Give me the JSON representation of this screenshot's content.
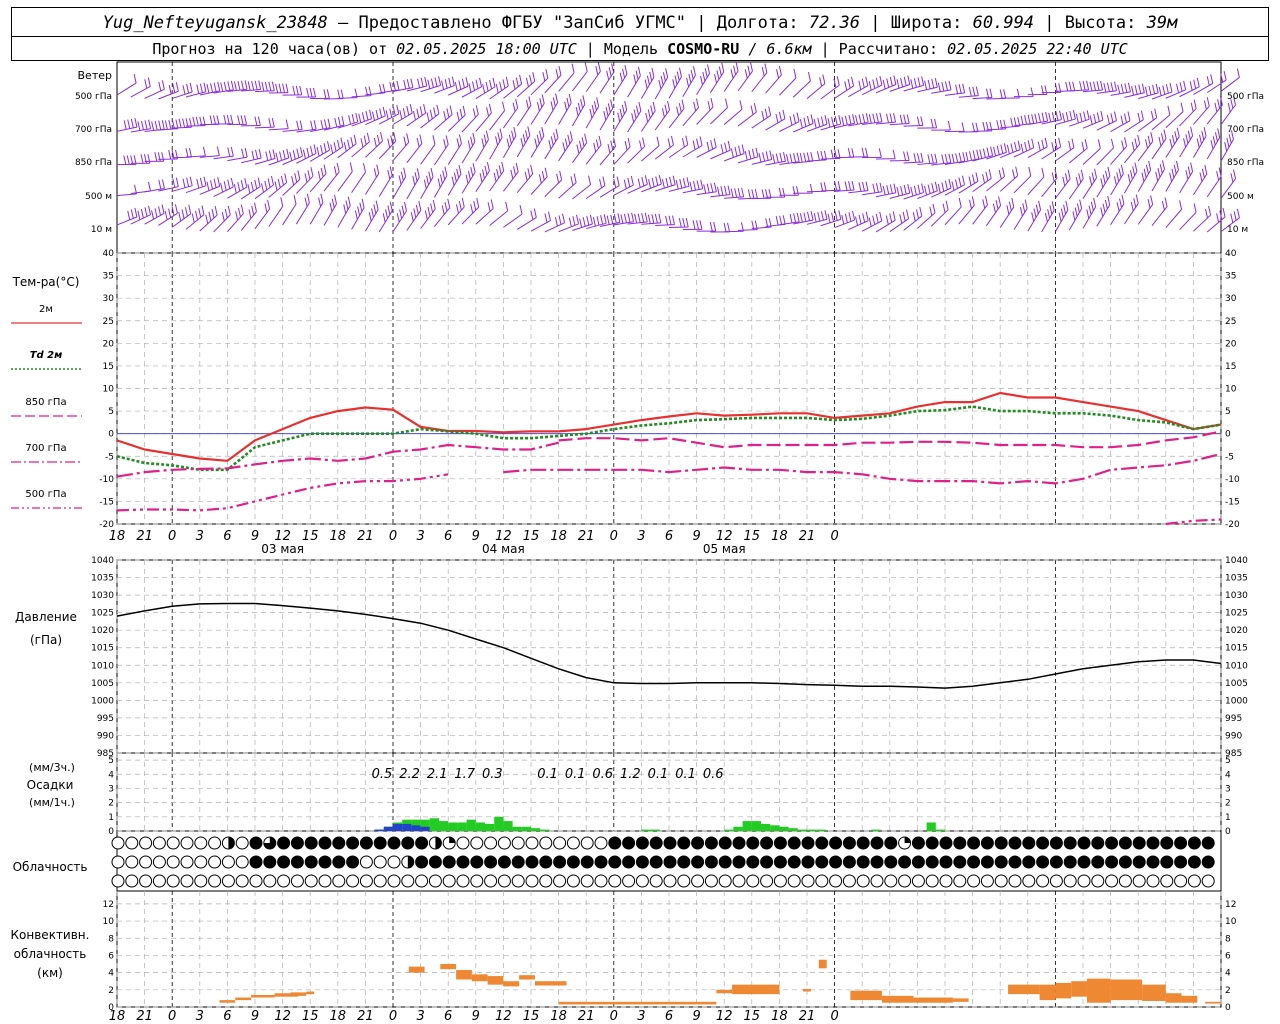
{
  "header": {
    "station": "Yug_Nefteyugansk_23848",
    "provider": " – Предоставлено ФГБУ \"ЗапСиб УГМС\" | Долгота: ",
    "lon": "72.36",
    "lat_label": " | Широта: ",
    "lat": "60.994",
    "alt_label": " | Высота: ",
    "alt": "39м",
    "forecast_label": "Прогноз на 120 часа(ов) от ",
    "forecast_from": "02.05.2025 18:00 UTC",
    "model_label": " | Модель ",
    "model": "COSMO-RU",
    "model_res": " / 6.6км",
    "calc_label": " | Рассчитано: ",
    "calc_time": "02.05.2025 22:40 UTC"
  },
  "time_axis": {
    "hour_labels": [
      "18",
      "21",
      "0",
      "3",
      "6",
      "9",
      "12",
      "15",
      "18",
      "21",
      "0",
      "3",
      "6",
      "9",
      "12",
      "15",
      "18",
      "21",
      "0",
      "3",
      "6",
      "9",
      "12",
      "15",
      "18",
      "21",
      "0"
    ],
    "day_labels": [
      {
        "text": "03 мая",
        "index": 6
      },
      {
        "text": "04 мая",
        "index": 14
      },
      {
        "text": "05 мая",
        "index": 22
      }
    ]
  },
  "wind_panel": {
    "title": "Ветер",
    "levels": [
      "500 гПа",
      "700 гПа",
      "850 гПа",
      "500 м",
      "10 м"
    ],
    "color": "#8a2be2"
  },
  "temp_panel": {
    "title": "Тем-ра(°С)",
    "yticks": [
      40,
      35,
      30,
      25,
      20,
      15,
      10,
      5,
      0,
      -5,
      -10,
      -15,
      -20
    ],
    "legend": [
      {
        "label": "2м",
        "color": "#e83030",
        "dash": "solid"
      },
      {
        "label": "Td 2м",
        "color": "#228b22",
        "dash": "dotted"
      },
      {
        "label": "850 гПа",
        "color": "#e0208a",
        "dash": "dash"
      },
      {
        "label": "700 гПа",
        "color": "#e0208a",
        "dash": "dashdot"
      },
      {
        "label": "500 гПа",
        "color": "#e0208a",
        "dash": "dashdotdot"
      }
    ]
  },
  "pressure_panel": {
    "title": "Давление",
    "unit": "(гПа)",
    "yticks": [
      1040,
      1035,
      1030,
      1025,
      1020,
      1015,
      1010,
      1005,
      1000,
      995,
      990,
      985
    ]
  },
  "precip_panel": {
    "title_top": "(мм/3ч.)",
    "title": "Осадки",
    "title_bottom": "(мм/1ч.)",
    "yticks": [
      5,
      4,
      3,
      2,
      1,
      0
    ],
    "totals": [
      {
        "value": "0.5",
        "index": 9.6
      },
      {
        "value": "2.2",
        "index": 10.6
      },
      {
        "value": "2.1",
        "index": 11.6
      },
      {
        "value": "1.7",
        "index": 12.6
      },
      {
        "value": "0.3",
        "index": 13.6
      },
      {
        "value": "0.1",
        "index": 15.6
      },
      {
        "value": "0.1",
        "index": 16.6
      },
      {
        "value": "0.6",
        "index": 17.6
      },
      {
        "value": "1.2",
        "index": 18.6
      },
      {
        "value": "0.1",
        "index": 19.6
      },
      {
        "value": "0.1",
        "index": 20.6
      },
      {
        "value": "0.6",
        "index": 21.6
      }
    ]
  },
  "cloud_panel": {
    "title": "Облачность",
    "rows": [
      "OOOOOOOOOOOOOOOOOOOOOHOOQTFFTFFFFFFFFFHFFFFFFFFFFFFFFFFFFFFFHHHQOOOOOOOOOOOOOOOOOOOOOOOOOOOOOOFFHFFFFTFFFFFFFFFFFFFFFFFFFFFFFFFFFFFFFFFFFFFFFFFFFFFFQQFFFFFFFFFFFFFFFFFFFFFFFFFFFFFFFFFFFFFFFFFFFFFFFFFFFFFFFFFFFF",
      "OOOOOOOOOOOOOOOOOOOOOOOOOFFFFFFFFFFFFFFFFFFFFHHOOOOOOOOHHFFFFFFFFFFFFFFFFFFFFFFFFFFFFFFFFFFFFFFFFFFFFFFFFFFFFFFFFFFFFFFFFFFFFFFFFFFFFFFFFFFFFFFFFFFFFFFFFFFFFFFFFFFFFFFFFFFFFFFFFFFFFFFFFFFFFFFFFFFFFFFFFFFFFFFFFFF",
      "OOOOOOOOOOOOOOOOOOOOOOOOOOOOOOOOOOOOOOOOOOOOOOOOOOOOOOOOOOOOOOOOOOOOOOOOOOOOOOOOOOOOOOOOOOOOOOOOOOOOOOOOOOOOOOOOOOOOOOOOOOOOOOOOOOOOOOOOOOOOOOOOOOOOOOOOOOOOOOOOOOOOOOOOOOOOOOOOOOOOOOOOOOOOOOOOOOOOOOOOO"
    ]
  },
  "conv_panel": {
    "title_lines": [
      "Конвективн.",
      "облачность",
      "(км)"
    ],
    "yticks": [
      12,
      10,
      8,
      6,
      4,
      2,
      0
    ]
  },
  "colors": {
    "wind": "#8a2be2",
    "t2m": "#e83030",
    "td2m": "#228b22",
    "upper": "#e0208a",
    "pressure": "#000000",
    "precip_green": "#22cc22",
    "precip_blue": "#2244cc",
    "convective": "#ee8833",
    "grid": "#b0b0b0"
  },
  "chart_data": [
    {
      "type": "line",
      "panel": "temperature",
      "title": "Тем-ра(°С)",
      "x_hours": [
        0,
        3,
        6,
        9,
        12,
        15,
        18,
        21,
        24,
        27,
        30,
        33,
        36,
        39,
        42,
        45,
        48,
        51,
        54,
        57,
        60,
        63,
        66,
        69,
        72,
        75,
        78,
        81,
        84,
        87,
        90,
        93,
        96,
        99,
        102,
        105,
        108,
        111,
        114,
        117,
        120
      ],
      "ylim": [
        -20,
        40
      ],
      "series": [
        {
          "name": "2м",
          "values": [
            -1.5,
            -3.5,
            -4.5,
            -5.5,
            -6,
            -1.5,
            1,
            3.5,
            5,
            5.8,
            5.3,
            1.5,
            0.6,
            0.6,
            0.3,
            0.5,
            0.5,
            1,
            2,
            3,
            3.8,
            4.5,
            4,
            4.2,
            4.5,
            4.5,
            3.5,
            4,
            4.5,
            6,
            7,
            7,
            9,
            8,
            8,
            7,
            6,
            5,
            3,
            1,
            2
          ]
        },
        {
          "name": "Td 2м",
          "values": [
            -5,
            -6.5,
            -7,
            -8,
            -8,
            -3,
            -1.5,
            0,
            0,
            0,
            0,
            1,
            0.5,
            0,
            -1,
            -1,
            -0.5,
            0,
            1,
            1.8,
            2.3,
            3,
            3.2,
            3.5,
            3.5,
            3.5,
            3,
            3.3,
            4,
            5,
            5.2,
            6,
            5,
            5,
            4.5,
            4.5,
            4,
            3,
            2.5,
            1,
            2
          ]
        },
        {
          "name": "850 гПа",
          "values": [
            null,
            null,
            null,
            null,
            null,
            null,
            null,
            null,
            null,
            null,
            null,
            null,
            null,
            null,
            null,
            null,
            -1.5,
            -1,
            -1,
            -1.5,
            -1,
            -2,
            -3,
            -2.5,
            -2.5,
            -2.5,
            -2.5,
            -2,
            -2,
            -1.8,
            -1.8,
            -2,
            -2.5,
            -2.5,
            -2.5,
            -3,
            -3,
            -2.5,
            -1.5,
            -0.8,
            0.5
          ]
        },
        {
          "name": "700 гПа",
          "values": [
            -9.5,
            -8.5,
            -8,
            -7.8,
            -7.7,
            -6.8,
            -6,
            -5.5,
            -6,
            -5.5,
            -4,
            -3.5,
            -2.5,
            -3,
            -3.5,
            -3.5,
            -2,
            null,
            null,
            null,
            null,
            null,
            null,
            null,
            null,
            null,
            null,
            null,
            null,
            null,
            null,
            null,
            null,
            null,
            null,
            null,
            null,
            null,
            null,
            null,
            null
          ]
        },
        {
          "name": "_700b",
          "values": [
            null,
            null,
            null,
            null,
            null,
            null,
            null,
            null,
            null,
            null,
            null,
            null,
            null,
            null,
            -8.5,
            -8,
            -8,
            -8,
            -8,
            -8,
            -8.5,
            -8,
            -7.5,
            -8,
            -8,
            -8.5,
            -8.5,
            -9,
            -10,
            -10.5,
            -10.5,
            -10.5,
            -11,
            -10.5,
            -11,
            -10,
            -8,
            -7.5,
            -7,
            -6,
            -4.5
          ]
        },
        {
          "name": "500 гПа",
          "values": [
            -17,
            -16.8,
            -16.8,
            -17,
            -16.5,
            -15,
            -13.5,
            -12,
            -11,
            -10.5,
            -10.5,
            -10,
            -9,
            null,
            null,
            null,
            null,
            null,
            null,
            null,
            null,
            null,
            null,
            null,
            null,
            null,
            null,
            null,
            null,
            null,
            null,
            null,
            null,
            null,
            null,
            null,
            null,
            null,
            -20,
            -19.3,
            -19
          ]
        }
      ]
    },
    {
      "type": "line",
      "panel": "pressure",
      "title": "Давление",
      "x_hours": [
        0,
        3,
        6,
        9,
        12,
        15,
        18,
        21,
        24,
        27,
        30,
        33,
        36,
        39,
        42,
        45,
        48,
        51,
        54,
        57,
        60,
        63,
        66,
        69,
        72,
        75,
        78,
        81,
        84,
        87,
        90,
        93,
        96,
        99,
        102,
        105,
        108,
        111,
        114,
        117,
        120
      ],
      "ylim": [
        985,
        1040
      ],
      "series": [
        {
          "name": "Давление",
          "values": [
            1024,
            1025.5,
            1026.8,
            1027.5,
            1027.6,
            1027.6,
            1027,
            1026.3,
            1025.5,
            1024.5,
            1023.3,
            1022,
            1020,
            1017.5,
            1015,
            1012,
            1009,
            1006.5,
            1005,
            1004.8,
            1004.8,
            1005,
            1005,
            1005,
            1004.8,
            1004.5,
            1004.3,
            1004,
            1004,
            1003.8,
            1003.5,
            1004,
            1005,
            1006,
            1007.5,
            1009,
            1010,
            1011,
            1011.5,
            1011.5,
            1010.5
          ]
        }
      ]
    },
    {
      "type": "bar",
      "panel": "precipitation",
      "title": "Осадки",
      "x_hours": [
        28,
        29,
        30,
        31,
        32,
        33,
        34,
        35,
        36,
        37,
        38,
        39,
        40,
        41,
        42,
        43,
        44,
        45,
        46,
        47,
        48,
        49,
        50,
        51,
        52,
        53,
        54,
        55,
        56,
        57,
        58,
        59,
        60,
        61,
        62,
        63,
        64,
        65,
        66,
        67,
        68,
        69,
        70,
        71,
        72,
        73,
        74,
        75,
        76,
        77,
        78,
        79,
        80,
        81,
        82,
        83,
        84,
        85,
        86,
        87,
        88,
        89,
        90,
        91,
        92,
        93,
        94,
        95,
        96,
        97,
        98,
        99,
        100
      ],
      "ylim": [
        0,
        5
      ],
      "series": [
        {
          "name": "rain",
          "values": [
            0.1,
            0.3,
            0.6,
            0.8,
            0.8,
            0.8,
            0.9,
            0.7,
            0.6,
            0.6,
            0.8,
            0.6,
            0.5,
            1,
            0.7,
            0.3,
            0.3,
            0.2,
            0.1,
            0,
            0,
            0,
            0,
            0,
            0,
            0,
            0,
            0,
            0,
            0.1,
            0.1,
            0,
            0,
            0,
            0,
            0,
            0,
            0,
            0.1,
            0.3,
            0.7,
            0.7,
            0.5,
            0.4,
            0.3,
            0.2,
            0.1,
            0.1,
            0.1,
            0,
            0,
            0,
            0,
            0,
            0.1,
            0,
            0,
            0,
            0,
            0,
            0.6,
            0.1,
            0,
            0,
            0,
            0,
            0,
            0,
            0,
            0,
            0,
            0,
            0
          ]
        },
        {
          "name": "snow",
          "values": [
            0.1,
            0.3,
            0.5,
            0.5,
            0.4,
            0.3,
            0,
            0,
            0,
            0,
            0,
            0,
            0,
            0,
            0,
            0,
            0,
            0,
            0,
            0,
            0,
            0,
            0,
            0,
            0,
            0,
            0,
            0,
            0,
            0,
            0,
            0,
            0,
            0,
            0,
            0,
            0,
            0,
            0,
            0,
            0,
            0,
            0,
            0,
            0,
            0,
            0,
            0,
            0,
            0,
            0,
            0,
            0,
            0,
            0,
            0,
            0,
            0,
            0,
            0,
            0,
            0,
            0,
            0,
            0,
            0,
            0,
            0,
            0,
            0,
            0,
            0,
            0
          ]
        }
      ]
    },
    {
      "type": "bar",
      "panel": "convective_cloud",
      "title": "Конвективн. облачность (км)",
      "ylim": [
        0,
        13
      ],
      "bars": [
        {
          "h0": 13,
          "h1": 15,
          "bottom": 0.5,
          "top": 0.8
        },
        {
          "h0": 15,
          "h1": 17,
          "bottom": 0.8,
          "top": 1.1
        },
        {
          "h0": 17,
          "h1": 20,
          "bottom": 1.1,
          "top": 1.4
        },
        {
          "h0": 20,
          "h1": 22,
          "bottom": 1.3,
          "top": 1.6
        },
        {
          "h0": 22,
          "h1": 24,
          "bottom": 1.3,
          "top": 1.7
        },
        {
          "h0": 24,
          "h1": 25,
          "bottom": 1.5,
          "top": 1.8
        },
        {
          "h0": 20,
          "h1": 23,
          "bottom": 1.2,
          "top": 1.5
        },
        {
          "h0": 37,
          "h1": 39,
          "bottom": 4.0,
          "top": 4.7
        },
        {
          "h0": 41,
          "h1": 43,
          "bottom": 4.4,
          "top": 5.0
        },
        {
          "h0": 43,
          "h1": 45,
          "bottom": 3.2,
          "top": 4.3
        },
        {
          "h0": 45,
          "h1": 47,
          "bottom": 3.0,
          "top": 3.8
        },
        {
          "h0": 47,
          "h1": 49,
          "bottom": 2.6,
          "top": 3.6
        },
        {
          "h0": 49,
          "h1": 51,
          "bottom": 2.4,
          "top": 3.0
        },
        {
          "h0": 51,
          "h1": 53,
          "bottom": 3.2,
          "top": 3.7
        },
        {
          "h0": 53,
          "h1": 57,
          "bottom": 2.5,
          "top": 3.0
        },
        {
          "h0": 56,
          "h1": 76,
          "bottom": 0.3,
          "top": 0.6
        },
        {
          "h0": 76,
          "h1": 78,
          "bottom": 1.6,
          "top": 2.0
        },
        {
          "h0": 78,
          "h1": 84,
          "bottom": 1.5,
          "top": 2.6
        },
        {
          "h0": 87,
          "h1": 88,
          "bottom": 1.8,
          "top": 2.1
        },
        {
          "h0": 89,
          "h1": 90,
          "bottom": 4.5,
          "top": 5.5
        },
        {
          "h0": 93,
          "h1": 97,
          "bottom": 0.8,
          "top": 1.9
        },
        {
          "h0": 97,
          "h1": 101,
          "bottom": 0.5,
          "top": 1.3
        },
        {
          "h0": 101,
          "h1": 106,
          "bottom": 0.5,
          "top": 1.1
        },
        {
          "h0": 106,
          "h1": 108,
          "bottom": 0.6,
          "top": 1.0
        },
        {
          "h0": 113,
          "h1": 117,
          "bottom": 1.5,
          "top": 2.6
        },
        {
          "h0": 117,
          "h1": 119,
          "bottom": 0.8,
          "top": 2.6
        },
        {
          "h0": 119,
          "h1": 121,
          "bottom": 1.0,
          "top": 2.8
        },
        {
          "h0": 121,
          "h1": 123,
          "bottom": 1.2,
          "top": 3.0
        },
        {
          "h0": 123,
          "h1": 126,
          "bottom": 0.5,
          "top": 3.3
        },
        {
          "h0": 126,
          "h1": 130,
          "bottom": 0.8,
          "top": 3.2
        },
        {
          "h0": 130,
          "h1": 133,
          "bottom": 0.7,
          "top": 2.6
        },
        {
          "h0": 133,
          "h1": 135,
          "bottom": 0.5,
          "top": 1.6
        },
        {
          "h0": 135,
          "h1": 137,
          "bottom": 0.5,
          "top": 1.3
        },
        {
          "h0": 138,
          "h1": 140,
          "bottom": 0.4,
          "top": 0.6
        }
      ]
    }
  ]
}
